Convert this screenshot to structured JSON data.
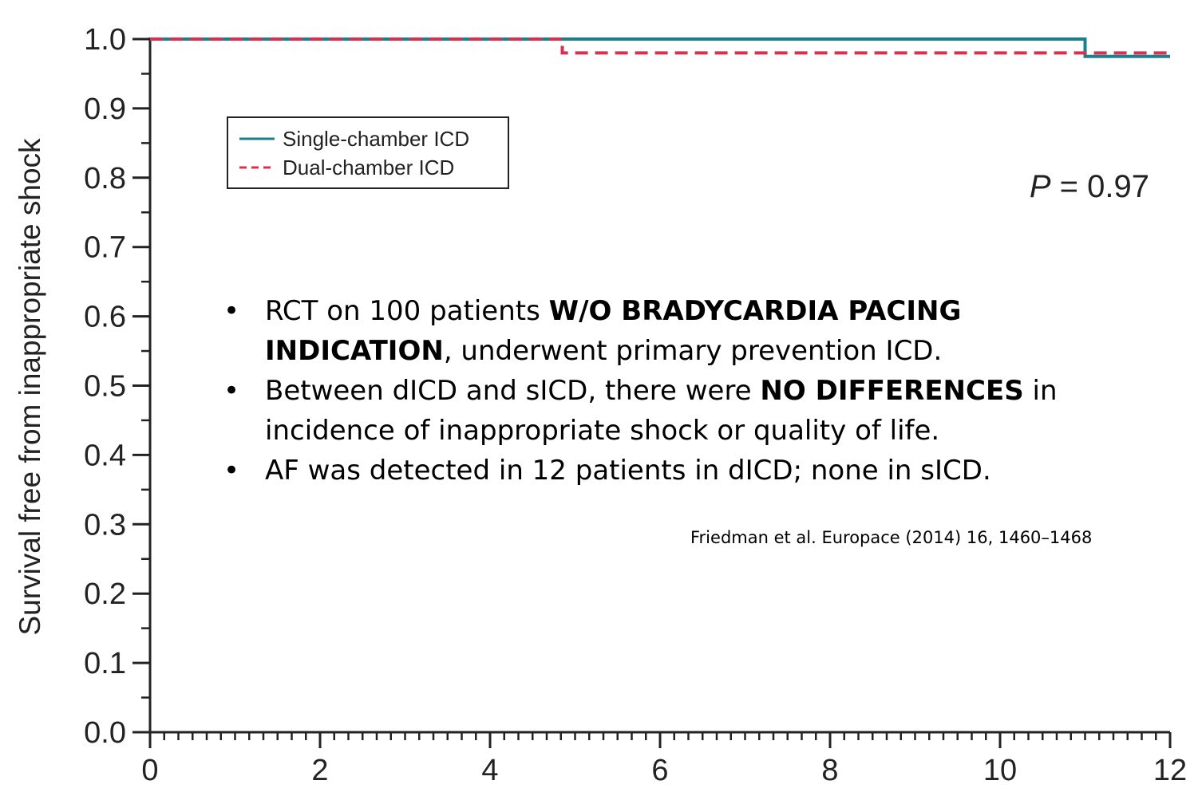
{
  "chart_data": {
    "type": "line",
    "title": "",
    "xlabel": "",
    "ylabel": "Survival free from inappropriate shock",
    "xlim": [
      0,
      12
    ],
    "ylim": [
      0,
      1.0
    ],
    "x_ticks": [
      0,
      2,
      4,
      6,
      8,
      10,
      12
    ],
    "y_ticks": [
      "0.0",
      "0.1",
      "0.2",
      "0.3",
      "0.4",
      "0.5",
      "0.6",
      "0.7",
      "0.8",
      "0.9",
      "1.0"
    ],
    "step": true,
    "grid": false,
    "legend_position": "top-left",
    "series": [
      {
        "name": "Single-chamber ICD",
        "color": "#1a7f8e",
        "style": "solid",
        "points": [
          [
            0,
            1.0
          ],
          [
            11.0,
            1.0
          ],
          [
            11.0,
            0.975
          ],
          [
            12.0,
            0.975
          ]
        ]
      },
      {
        "name": "Dual-chamber ICD",
        "color": "#d9304f",
        "style": "dashed",
        "points": [
          [
            0,
            1.0
          ],
          [
            4.85,
            1.0
          ],
          [
            4.85,
            0.98
          ],
          [
            12.0,
            0.98
          ]
        ]
      }
    ],
    "annotation": {
      "italic": "P",
      "text": " = 0.97"
    }
  },
  "notes": [
    {
      "parts": [
        {
          "text": "RCT on 100 patients ",
          "bold": false
        },
        {
          "text": "W/O BRADYCARDIA PACING INDICATION",
          "bold": true
        },
        {
          "text": ", underwent primary prevention ICD.",
          "bold": false
        }
      ]
    },
    {
      "parts": [
        {
          "text": "Between dICD and sICD, there were ",
          "bold": false
        },
        {
          "text": "NO DIFFERENCES",
          "bold": true
        },
        {
          "text": " in incidence of inappropriate shock or quality of life.",
          "bold": false
        }
      ]
    },
    {
      "parts": [
        {
          "text": "AF was detected in 12 patients in dICD; none in sICD.",
          "bold": false
        }
      ]
    }
  ],
  "bullet_char": "•",
  "citation": "Friedman et al. Europace (2014) 16, 1460–1468"
}
